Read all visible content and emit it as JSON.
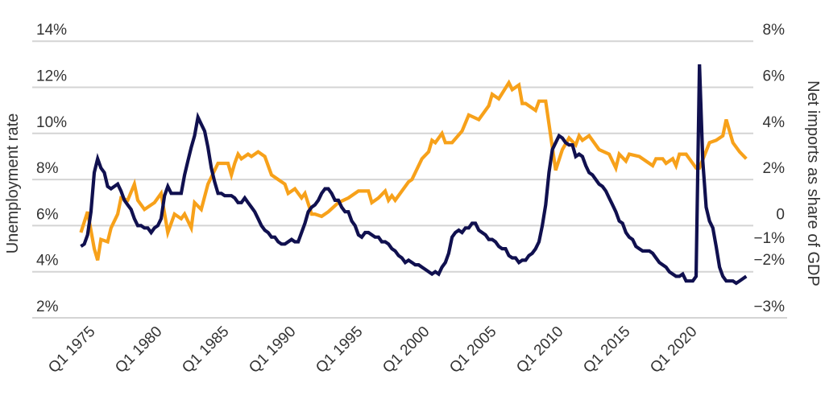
{
  "chart_data": {
    "type": "line",
    "title": "",
    "xlabel": "",
    "ylabel_left": "Unemployment rate",
    "ylabel_right": "Net imports as share of GDP",
    "x_ticks": [
      "Q1 1975",
      "Q1 1980",
      "Q1 1985",
      "Q1 1990",
      "Q1 1995",
      "Q1 2000",
      "Q1 2005",
      "Q1 2010",
      "Q1 2015",
      "Q1 2020"
    ],
    "y_left_ticks": [
      {
        "v": 2,
        "label": "2%"
      },
      {
        "v": 4,
        "label": "4%"
      },
      {
        "v": 6,
        "label": "6%"
      },
      {
        "v": 8,
        "label": "8%"
      },
      {
        "v": 10,
        "label": "10%"
      },
      {
        "v": 12,
        "label": "12%"
      },
      {
        "v": 14,
        "label": "14%"
      }
    ],
    "y_right_ticks": [
      {
        "v": 8,
        "label": "8%"
      },
      {
        "v": 6,
        "label": "6%"
      },
      {
        "v": 4,
        "label": "4%"
      },
      {
        "v": 2,
        "label": "2%"
      },
      {
        "v": 0,
        "label": "0"
      },
      {
        "v": -1,
        "label": "−1%"
      },
      {
        "v": -2,
        "label": "−2%"
      },
      {
        "v": -3,
        "label": "−3%"
      }
    ],
    "ylim_left": [
      2,
      14
    ],
    "grid": true,
    "legend": "none",
    "x_start": "Q1 1974",
    "frequency": "quarterly",
    "series": [
      {
        "axis": "left",
        "color": "#10104f",
        "values": [
          5.1,
          5.2,
          5.6,
          6.6,
          8.3,
          8.9,
          8.5,
          8.3,
          7.7,
          7.6,
          7.7,
          7.8,
          7.5,
          7.1,
          6.9,
          6.7,
          6.3,
          6.0,
          6.0,
          5.9,
          5.9,
          5.7,
          5.9,
          6.0,
          6.3,
          7.3,
          7.7,
          7.4,
          7.4,
          7.4,
          7.4,
          8.2,
          8.8,
          9.4,
          9.9,
          10.7,
          10.4,
          10.1,
          9.4,
          8.5,
          7.9,
          7.4,
          7.4,
          7.3,
          7.3,
          7.3,
          7.2,
          7.0,
          7.0,
          7.2,
          7.0,
          6.8,
          6.6,
          6.3,
          6.0,
          5.8,
          5.7,
          5.5,
          5.5,
          5.3,
          5.2,
          5.2,
          5.3,
          5.4,
          5.3,
          5.3,
          5.7,
          6.1,
          6.6,
          6.8,
          6.9,
          7.1,
          7.4,
          7.6,
          7.6,
          7.4,
          7.1,
          7.1,
          6.8,
          6.6,
          6.6,
          6.2,
          6.0,
          5.6,
          5.5,
          5.7,
          5.7,
          5.6,
          5.5,
          5.5,
          5.3,
          5.3,
          5.2,
          5.0,
          4.9,
          4.7,
          4.6,
          4.4,
          4.5,
          4.4,
          4.3,
          4.3,
          4.2,
          4.1,
          4.0,
          3.9,
          4.0,
          3.9,
          4.2,
          4.4,
          4.8,
          5.5,
          5.7,
          5.8,
          5.7,
          5.9,
          5.9,
          6.1,
          6.1,
          5.8,
          5.7,
          5.6,
          5.4,
          5.4,
          5.3,
          5.1,
          5.0,
          5.0,
          4.7,
          4.6,
          4.6,
          4.4,
          4.5,
          4.5,
          4.7,
          4.8,
          5.0,
          5.3,
          6.0,
          6.9,
          8.3,
          9.3,
          9.6,
          9.9,
          9.8,
          9.6,
          9.5,
          9.5,
          9.0,
          9.1,
          9.0,
          8.6,
          8.3,
          8.2,
          8.0,
          7.8,
          7.7,
          7.5,
          7.2,
          6.9,
          6.6,
          6.2,
          6.1,
          5.7,
          5.5,
          5.4,
          5.1,
          5.0,
          4.9,
          4.9,
          4.9,
          4.8,
          4.6,
          4.4,
          4.3,
          4.2,
          4.0,
          3.9,
          3.8,
          3.8,
          3.9,
          3.6,
          3.6,
          3.6,
          3.8,
          13.0,
          8.8,
          6.8,
          6.2,
          5.9,
          5.1,
          4.2,
          3.8,
          3.6,
          3.6,
          3.6,
          3.5,
          3.6,
          3.7,
          3.8
        ]
      },
      {
        "axis": "right",
        "color": "#f7a11a",
        "points": [
          [
            "1974 Q1",
            -0.3
          ],
          [
            "1974 Q3",
            0.6
          ],
          [
            "1975 Q1",
            -1.0
          ],
          [
            "1975 Q2",
            -1.5
          ],
          [
            "1975 Q3",
            -0.6
          ],
          [
            "1976 Q1",
            -0.7
          ],
          [
            "1976 Q2",
            -0.1
          ],
          [
            "1976 Q4",
            0.5
          ],
          [
            "1977 Q1",
            1.2
          ],
          [
            "1977 Q3",
            1.1
          ],
          [
            "1978 Q1",
            1.8
          ],
          [
            "1978 Q2",
            1.1
          ],
          [
            "1978 Q4",
            0.7
          ],
          [
            "1979 Q3",
            1.0
          ],
          [
            "1980 Q1",
            1.4
          ],
          [
            "1980 Q3",
            -0.3
          ],
          [
            "1981 Q1",
            0.5
          ],
          [
            "1981 Q3",
            0.3
          ],
          [
            "1981 Q4",
            0.5
          ],
          [
            "1982 Q2",
            -0.1
          ],
          [
            "1982 Q3",
            1.0
          ],
          [
            "1983 Q1",
            0.7
          ],
          [
            "1983 Q3",
            1.8
          ],
          [
            "1984 Q2",
            2.7
          ],
          [
            "1985 Q1",
            2.7
          ],
          [
            "1985 Q2",
            2.2
          ],
          [
            "1985 Q3",
            2.7
          ],
          [
            "1985 Q4",
            3.1
          ],
          [
            "1986 Q1",
            2.9
          ],
          [
            "1986 Q3",
            3.1
          ],
          [
            "1986 Q4",
            3.0
          ],
          [
            "1987 Q2",
            3.2
          ],
          [
            "1987 Q4",
            3.0
          ],
          [
            "1988 Q2",
            2.2
          ],
          [
            "1988 Q4",
            2.0
          ],
          [
            "1989 Q2",
            1.8
          ],
          [
            "1989 Q3",
            1.4
          ],
          [
            "1990 Q1",
            1.6
          ],
          [
            "1990 Q3",
            1.2
          ],
          [
            "1990 Q4",
            1.4
          ],
          [
            "1991 Q2",
            0.5
          ],
          [
            "1991 Q3",
            0.5
          ],
          [
            "1992 Q1",
            0.4
          ],
          [
            "1992 Q3",
            0.6
          ],
          [
            "1993 Q2",
            1.0
          ],
          [
            "1994 Q1",
            1.2
          ],
          [
            "1994 Q4",
            1.5
          ],
          [
            "1995 Q3",
            1.5
          ],
          [
            "1995 Q4",
            1.0
          ],
          [
            "1996 Q2",
            1.2
          ],
          [
            "1996 Q4",
            1.5
          ],
          [
            "1997 Q1",
            1.1
          ],
          [
            "1997 Q2",
            1.3
          ],
          [
            "1997 Q3",
            1.1
          ],
          [
            "1998 Q3",
            1.9
          ],
          [
            "1998 Q4",
            2.0
          ],
          [
            "1999 Q3",
            2.9
          ],
          [
            "2000 Q1",
            3.2
          ],
          [
            "2000 Q2",
            3.7
          ],
          [
            "2000 Q3",
            3.6
          ],
          [
            "2001 Q1",
            4.0
          ],
          [
            "2001 Q2",
            3.6
          ],
          [
            "2001 Q4",
            3.6
          ],
          [
            "2002 Q3",
            4.1
          ],
          [
            "2003 Q1",
            4.8
          ],
          [
            "2003 Q4",
            4.6
          ],
          [
            "2004 Q3",
            5.2
          ],
          [
            "2004 Q4",
            5.7
          ],
          [
            "2005 Q2",
            5.5
          ],
          [
            "2006 Q1",
            6.2
          ],
          [
            "2006 Q2",
            5.9
          ],
          [
            "2006 Q4",
            6.1
          ],
          [
            "2007 Q1",
            5.3
          ],
          [
            "2007 Q2",
            5.3
          ],
          [
            "2008 Q1",
            5.0
          ],
          [
            "2008 Q2",
            5.4
          ],
          [
            "2008 Q4",
            5.4
          ],
          [
            "2009 Q3",
            2.4
          ],
          [
            "2010 Q1",
            3.3
          ],
          [
            "2010 Q3",
            3.8
          ],
          [
            "2011 Q1",
            3.5
          ],
          [
            "2011 Q2",
            3.9
          ],
          [
            "2011 Q3",
            3.7
          ],
          [
            "2012 Q1",
            3.9
          ],
          [
            "2012 Q4",
            3.3
          ],
          [
            "2013 Q3",
            3.1
          ],
          [
            "2014 Q1",
            2.5
          ],
          [
            "2014 Q2",
            3.1
          ],
          [
            "2014 Q4",
            2.8
          ],
          [
            "2015 Q1",
            3.1
          ],
          [
            "2015 Q4",
            3.0
          ],
          [
            "2016 Q4",
            2.6
          ],
          [
            "2017 Q1",
            2.9
          ],
          [
            "2017 Q3",
            2.9
          ],
          [
            "2017 Q4",
            2.7
          ],
          [
            "2018 Q2",
            2.9
          ],
          [
            "2018 Q3",
            2.6
          ],
          [
            "2018 Q4",
            3.1
          ],
          [
            "2019 Q2",
            3.1
          ],
          [
            "2019 Q3",
            2.9
          ],
          [
            "2020 Q1",
            2.5
          ],
          [
            "2020 Q2",
            2.5
          ],
          [
            "2021 Q1",
            3.6
          ],
          [
            "2021 Q3",
            3.7
          ],
          [
            "2022 Q1",
            3.9
          ],
          [
            "2022 Q2",
            4.6
          ],
          [
            "2022 Q4",
            3.6
          ],
          [
            "2023 Q2",
            3.2
          ],
          [
            "2023 Q4",
            2.9
          ]
        ]
      }
    ]
  }
}
